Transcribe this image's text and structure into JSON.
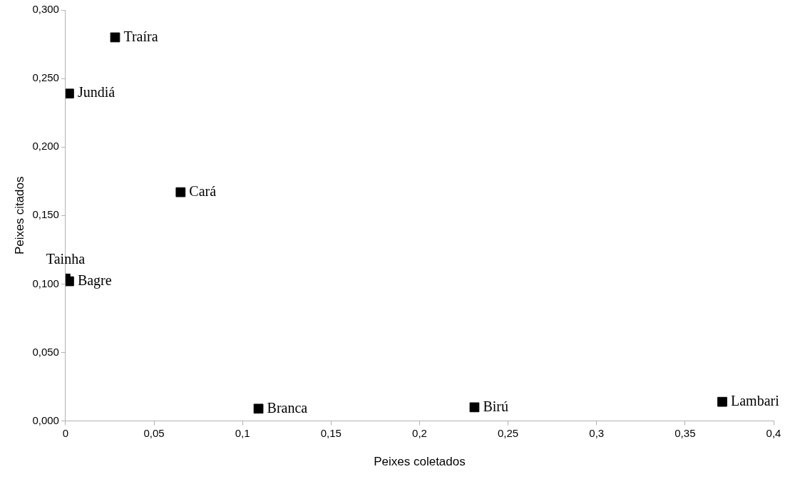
{
  "chart_data": {
    "type": "scatter",
    "xlabel": "Peixes coletados",
    "ylabel": "Peixes citados",
    "series": [
      {
        "color": "#000000",
        "x": [
          0.028,
          0.002,
          0.065,
          0.0,
          0.002,
          0.109,
          0.231,
          0.371
        ],
        "values": [
          0.28,
          0.239,
          0.167,
          0.104,
          0.102,
          0.009,
          0.01,
          0.014
        ]
      }
    ],
    "annotations": [
      {
        "text": "Traíra",
        "x": 0.028,
        "y": 0.28
      },
      {
        "text": "Jundiá",
        "x": 0.002,
        "y": 0.239
      },
      {
        "text": "Cará",
        "x": 0.065,
        "y": 0.167
      },
      {
        "text": "Tainha",
        "x": 0.0,
        "y": 0.104
      },
      {
        "text": "Bagre",
        "x": 0.002,
        "y": 0.102
      },
      {
        "text": "Branca",
        "x": 0.109,
        "y": 0.009
      },
      {
        "text": "Birú",
        "x": 0.231,
        "y": 0.01
      },
      {
        "text": "Lambari",
        "x": 0.371,
        "y": 0.014
      }
    ],
    "xlim": [
      0,
      0.4
    ],
    "ylim": [
      0,
      0.3
    ],
    "xticks": [
      0,
      {
        "value": 0.05,
        "label": "0,05"
      },
      {
        "value": 0.1,
        "label": "0,1"
      },
      {
        "value": 0.15,
        "label": "0,15"
      },
      {
        "value": 0.2,
        "label": "0,2"
      },
      {
        "value": 0.25,
        "label": "0,25"
      },
      {
        "value": 0.3,
        "label": "0,3"
      },
      {
        "value": 0.35,
        "label": "0,35"
      },
      {
        "value": 0.4,
        "label": "0,4"
      }
    ],
    "yticks": [
      {
        "value": 0,
        "label": "0,000"
      },
      {
        "value": 0.05,
        "label": "0,050"
      },
      {
        "value": 0.1,
        "label": "0,100"
      },
      {
        "value": 0.15,
        "label": "0,150"
      },
      {
        "value": 0.2,
        "label": "0,200"
      },
      {
        "value": 0.25,
        "label": "0,250"
      },
      {
        "value": 0.3,
        "label": "0,300"
      }
    ],
    "grid": false,
    "legend": false,
    "marker": "square"
  }
}
